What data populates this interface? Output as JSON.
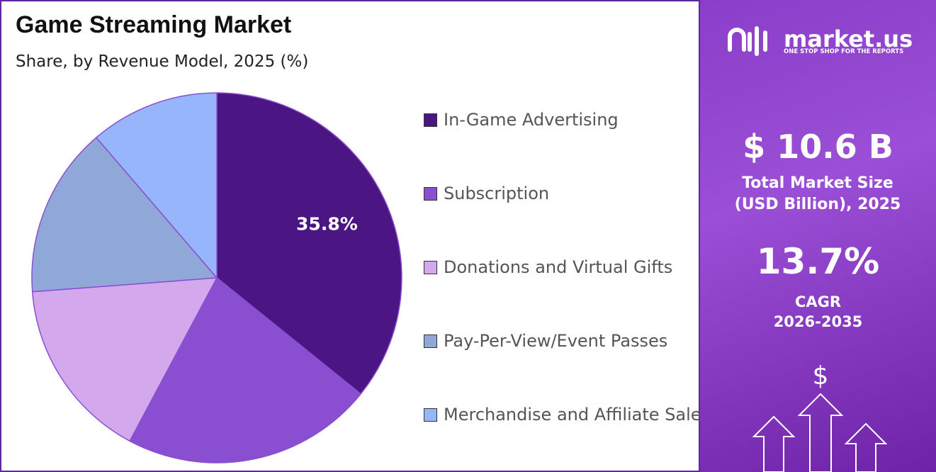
{
  "chart_data": {
    "type": "pie",
    "title": "Game Streaming Market",
    "subtitle": "Share, by Revenue Model, 2025 (%)",
    "categories": [
      "In-Game Advertising",
      "Subscription",
      "Donations and Virtual Gifts",
      "Pay-Per-View/Event Passes",
      "Merchandise and Affiliate Sales"
    ],
    "values": [
      35.8,
      22.0,
      16.0,
      14.9,
      11.3
    ],
    "value_labels": [
      "35.8%",
      null,
      null,
      null,
      null
    ],
    "colors": [
      "#4b1583",
      "#8a4fd0",
      "#d4a8ec",
      "#8fa8d8",
      "#97b5fb"
    ]
  },
  "panel": {
    "brand": "market.us",
    "tagline": "ONE STOP SHOP FOR THE REPORTS",
    "market_size": "$ 10.6 B",
    "market_size_label": "Total Market Size (USD Billion), 2025",
    "cagr": "13.7%",
    "cagr_label": "CAGR",
    "cagr_period": "2026-2035"
  }
}
